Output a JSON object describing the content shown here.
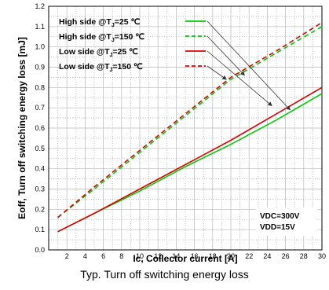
{
  "caption": "Typ. Turn off switching energy loss",
  "conditions": [
    "VDC=300V",
    "VDD=15V"
  ],
  "chart_data": {
    "type": "line",
    "xlabel": "Ic, Collector current [A]",
    "ylabel": "Eoff, Turn off switching energy loss [mJ]",
    "xlim": [
      0,
      30
    ],
    "ylim": [
      0,
      1.2
    ],
    "xticks": [
      2,
      4,
      6,
      8,
      10,
      12,
      14,
      16,
      18,
      20,
      22,
      24,
      26,
      28,
      30
    ],
    "yticks": [
      "0.0",
      "0.1",
      "0.2",
      "0.3",
      "0.4",
      "0.5",
      "0.6",
      "0.7",
      "0.8",
      "0.9",
      "1.0",
      "1.1",
      "1.2"
    ],
    "grid": true,
    "legend_position": "top-left",
    "series": [
      {
        "name": "High side @TJ=25 ℃",
        "color": "#00cc00",
        "dash": "solid",
        "x": [
          1,
          5,
          10,
          15,
          20,
          25,
          30
        ],
        "y": [
          0.09,
          0.18,
          0.29,
          0.41,
          0.52,
          0.64,
          0.77
        ]
      },
      {
        "name": "High side @TJ=150 ℃",
        "color": "#00cc00",
        "dash": "dashed",
        "x": [
          1,
          5,
          10,
          15,
          20,
          25,
          30
        ],
        "y": [
          0.16,
          0.3,
          0.48,
          0.66,
          0.84,
          0.97,
          1.1
        ]
      },
      {
        "name": "Low side @TJ=25 ℃",
        "color": "#dd0000",
        "dash": "solid",
        "x": [
          1,
          5,
          10,
          15,
          20,
          25,
          30
        ],
        "y": [
          0.09,
          0.18,
          0.3,
          0.42,
          0.54,
          0.67,
          0.8
        ]
      },
      {
        "name": "Low side @TJ=150 ℃",
        "color": "#dd0000",
        "dash": "dashed",
        "x": [
          1,
          5,
          10,
          15,
          20,
          25,
          30
        ],
        "y": [
          0.16,
          0.31,
          0.49,
          0.67,
          0.85,
          0.98,
          1.12
        ]
      }
    ],
    "legend": [
      {
        "prefix": "High side @T",
        "sub": "J",
        "suffix": "=25 ℃"
      },
      {
        "prefix": "High side @T",
        "sub": "J",
        "suffix": "=150 ℃"
      },
      {
        "prefix": "Low side @T",
        "sub": "J",
        "suffix": "=25 ℃"
      },
      {
        "prefix": "Low side @T",
        "sub": "J",
        "suffix": "=150 ℃"
      }
    ],
    "arrows": [
      {
        "from_series": 0,
        "to_x": 26.5,
        "to_y": 0.69
      },
      {
        "from_series": 1,
        "to_x": 21.5,
        "to_y": 0.86
      },
      {
        "from_series": 2,
        "to_x": 24.5,
        "to_y": 0.71
      },
      {
        "from_series": 3,
        "to_x": 19.5,
        "to_y": 0.84
      }
    ]
  }
}
